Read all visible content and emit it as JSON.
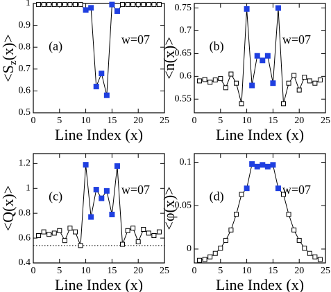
{
  "chart_data": [
    {
      "type": "scatter-line",
      "panel": "(a)",
      "annotation": "w=07",
      "ylabel": [
        "<S",
        "z",
        "(x)>"
      ],
      "xlabel": "Line Index (x)",
      "xlim": [
        0,
        25
      ],
      "xticks": [
        0,
        5,
        10,
        15,
        20,
        25
      ],
      "ylim": [
        0.5,
        1
      ],
      "yticks": [
        0.5,
        0.6,
        0.7,
        0.8,
        0.9,
        1
      ],
      "x": [
        1,
        2,
        3,
        4,
        5,
        6,
        7,
        8,
        9,
        10,
        11,
        12,
        13,
        14,
        15,
        16,
        17,
        18,
        19,
        20,
        21,
        22,
        23,
        24
      ],
      "values": [
        0.995,
        0.995,
        0.995,
        0.995,
        0.995,
        0.995,
        0.995,
        0.995,
        0.995,
        0.97,
        0.98,
        0.62,
        0.68,
        0.58,
        0.995,
        0.965,
        0.995,
        0.995,
        0.995,
        0.995,
        0.995,
        0.995,
        0.995,
        0.995
      ],
      "colors": [
        "#ffffff",
        "#ffffff",
        "#ffffff",
        "#ffffff",
        "#ffffff",
        "#ffffff",
        "#ffffff",
        "#ffffff",
        "#ffffff",
        "#1f3fe0",
        "#1f3fe0",
        "#1f3fe0",
        "#1f3fe0",
        "#1f3fe0",
        "#1f3fe0",
        "#1f3fe0",
        "#ffffff",
        "#ffffff",
        "#ffffff",
        "#ffffff",
        "#ffffff",
        "#ffffff",
        "#ffffff",
        "#ffffff"
      ]
    },
    {
      "type": "scatter-line",
      "panel": "(b)",
      "annotation": "w=07",
      "ylabel": [
        "<n(x)>"
      ],
      "xlabel": "Line Index (x)",
      "xlim": [
        0,
        25
      ],
      "xticks": [
        0,
        5,
        10,
        15,
        20,
        25
      ],
      "ylim": [
        0.52,
        0.76
      ],
      "yticks": [
        0.55,
        0.6,
        0.65,
        0.7,
        0.75
      ],
      "x": [
        1,
        2,
        3,
        4,
        5,
        6,
        7,
        8,
        9,
        10,
        11,
        12,
        13,
        14,
        15,
        16,
        17,
        18,
        19,
        20,
        21,
        22,
        23,
        24
      ],
      "values": [
        0.59,
        0.593,
        0.587,
        0.592,
        0.595,
        0.575,
        0.605,
        0.585,
        0.54,
        0.748,
        0.58,
        0.645,
        0.635,
        0.645,
        0.585,
        0.75,
        0.54,
        0.585,
        0.602,
        0.57,
        0.598,
        0.59,
        0.585,
        0.592
      ],
      "colors": [
        "#ffffff",
        "#ffffff",
        "#ffffff",
        "#ffffff",
        "#ffffff",
        "#ffffff",
        "#ffffff",
        "#ffffff",
        "#ffffff",
        "#1f3fe0",
        "#1f3fe0",
        "#1f3fe0",
        "#1f3fe0",
        "#1f3fe0",
        "#1f3fe0",
        "#1f3fe0",
        "#ffffff",
        "#ffffff",
        "#ffffff",
        "#ffffff",
        "#ffffff",
        "#ffffff",
        "#ffffff",
        "#ffffff"
      ]
    },
    {
      "type": "scatter-line",
      "panel": "(c)",
      "annotation": "w=07",
      "ylabel": [
        "<Q(x)>"
      ],
      "xlabel": "Line Index (x)",
      "xlim": [
        0,
        25
      ],
      "xticks": [
        0,
        5,
        10,
        15,
        20,
        25
      ],
      "ylim": [
        0.4,
        1.28
      ],
      "yticks": [
        0.4,
        0.6,
        0.8,
        1,
        1.2
      ],
      "hline": 0.54,
      "x": [
        1,
        2,
        3,
        4,
        5,
        6,
        7,
        8,
        9,
        10,
        11,
        12,
        13,
        14,
        15,
        16,
        17,
        18,
        19,
        20,
        21,
        22,
        23,
        24
      ],
      "values": [
        0.62,
        0.65,
        0.63,
        0.64,
        0.66,
        0.58,
        0.68,
        0.65,
        0.54,
        1.19,
        0.77,
        0.99,
        0.92,
        0.98,
        0.79,
        1.18,
        0.55,
        0.66,
        0.68,
        0.57,
        0.67,
        0.64,
        0.62,
        0.65
      ],
      "colors": [
        "#ffffff",
        "#ffffff",
        "#ffffff",
        "#ffffff",
        "#ffffff",
        "#ffffff",
        "#ffffff",
        "#ffffff",
        "#ffffff",
        "#1f3fe0",
        "#1f3fe0",
        "#1f3fe0",
        "#1f3fe0",
        "#1f3fe0",
        "#1f3fe0",
        "#1f3fe0",
        "#ffffff",
        "#ffffff",
        "#ffffff",
        "#ffffff",
        "#ffffff",
        "#ffffff",
        "#ffffff",
        "#ffffff"
      ]
    },
    {
      "type": "scatter-line",
      "panel": "(d)",
      "annotation": "w=07",
      "ylabel": [
        "<φ(x)>"
      ],
      "xlabel": "Line Index (x)",
      "xlim": [
        0,
        25
      ],
      "xticks": [
        0,
        5,
        10,
        15,
        20,
        25
      ],
      "ylim": [
        -0.016,
        0.11
      ],
      "yticks": [
        0,
        0.05,
        0.1
      ],
      "x": [
        1,
        2,
        3,
        4,
        5,
        6,
        7,
        8,
        9,
        10,
        11,
        12,
        13,
        14,
        15,
        16,
        17,
        18,
        19,
        20,
        21,
        22,
        23,
        24
      ],
      "values": [
        -0.013,
        -0.012,
        -0.009,
        -0.005,
        0.001,
        0.01,
        0.022,
        0.04,
        0.063,
        0.07,
        0.098,
        0.095,
        0.097,
        0.095,
        0.097,
        0.07,
        0.063,
        0.04,
        0.022,
        0.01,
        0.001,
        -0.005,
        -0.009,
        -0.012
      ],
      "colors": [
        "#ffffff",
        "#ffffff",
        "#ffffff",
        "#ffffff",
        "#ffffff",
        "#ffffff",
        "#ffffff",
        "#ffffff",
        "#ffffff",
        "#1f3fe0",
        "#1f3fe0",
        "#1f3fe0",
        "#1f3fe0",
        "#1f3fe0",
        "#1f3fe0",
        "#1f3fe0",
        "#ffffff",
        "#ffffff",
        "#ffffff",
        "#ffffff",
        "#ffffff",
        "#ffffff",
        "#ffffff",
        "#ffffff"
      ]
    }
  ]
}
